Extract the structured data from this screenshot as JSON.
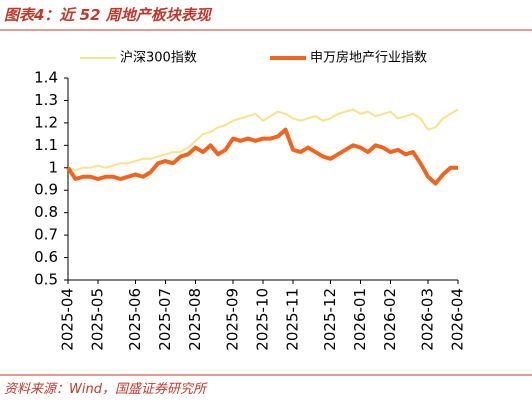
{
  "chart_data": {
    "type": "line",
    "title": "图表4：近 52 周地产板块表现",
    "source": "资料来源：Wind，国盛证券研究所",
    "categories": [
      "2025-04",
      null,
      null,
      null,
      "2025-05",
      null,
      null,
      null,
      null,
      "2025-06",
      null,
      null,
      null,
      "2025-07",
      null,
      null,
      null,
      "2025-08",
      null,
      null,
      null,
      null,
      "2025-09",
      null,
      null,
      null,
      "2025-10",
      null,
      null,
      null,
      "2025-11",
      null,
      null,
      null,
      null,
      "2025-12",
      null,
      null,
      null,
      "2026-01",
      null,
      null,
      null,
      "2026-02",
      null,
      null,
      null,
      null,
      "2026-03",
      null,
      null,
      null,
      "2026-04"
    ],
    "series": [
      {
        "name": "沪深300指数",
        "color": "#f7e38f",
        "width": 2,
        "values": [
          1.0,
          0.99,
          1.0,
          1.0,
          1.01,
          1.0,
          1.01,
          1.02,
          1.02,
          1.03,
          1.04,
          1.04,
          1.05,
          1.06,
          1.07,
          1.07,
          1.09,
          1.12,
          1.15,
          1.16,
          1.18,
          1.19,
          1.21,
          1.22,
          1.23,
          1.24,
          1.21,
          1.23,
          1.25,
          1.24,
          1.22,
          1.21,
          1.22,
          1.23,
          1.21,
          1.22,
          1.24,
          1.25,
          1.26,
          1.24,
          1.25,
          1.23,
          1.24,
          1.25,
          1.22,
          1.23,
          1.24,
          1.22,
          1.17,
          1.18,
          1.22,
          1.24,
          1.26
        ]
      },
      {
        "name": "申万房地产行业指数",
        "color": "#f0641e",
        "width": 4,
        "values": [
          1.0,
          0.95,
          0.96,
          0.96,
          0.95,
          0.96,
          0.96,
          0.95,
          0.96,
          0.97,
          0.96,
          0.98,
          1.02,
          1.03,
          1.02,
          1.05,
          1.06,
          1.09,
          1.07,
          1.1,
          1.06,
          1.08,
          1.13,
          1.12,
          1.13,
          1.12,
          1.13,
          1.13,
          1.14,
          1.17,
          1.08,
          1.07,
          1.09,
          1.07,
          1.05,
          1.04,
          1.06,
          1.08,
          1.1,
          1.09,
          1.07,
          1.1,
          1.09,
          1.07,
          1.08,
          1.06,
          1.07,
          1.02,
          0.96,
          0.93,
          0.97,
          1.0,
          1.0
        ]
      }
    ],
    "ylim": [
      0.5,
      1.4
    ],
    "yticks": [
      0.5,
      0.6,
      0.7,
      0.8,
      0.9,
      1,
      1.1,
      1.2,
      1.3,
      1.4
    ],
    "grid": false
  }
}
